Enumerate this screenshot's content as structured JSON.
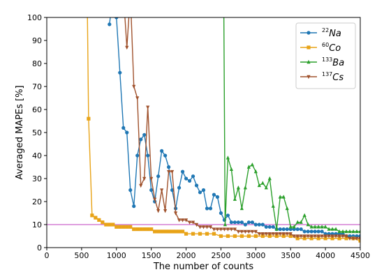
{
  "chart_data": {
    "type": "line",
    "title": "",
    "xlabel": "The number of counts",
    "ylabel": "Averaged MAPEs [%]",
    "xlim": [
      0,
      4500
    ],
    "ylim": [
      0,
      100
    ],
    "x_ticks": [
      0,
      500,
      1000,
      1500,
      2000,
      2500,
      3000,
      3500,
      4000,
      4500
    ],
    "y_ticks": [
      0,
      10,
      20,
      30,
      40,
      50,
      60,
      70,
      80,
      90,
      100
    ],
    "grid": false,
    "legend_position": "top-right",
    "reference_line": {
      "y": 10,
      "color": "#cc66cc"
    },
    "series": [
      {
        "name_sup": "22",
        "name_main": "Na",
        "color": "#1f77b4",
        "marker": "circle",
        "x": [
          900,
          950,
          1000,
          1050,
          1100,
          1150,
          1200,
          1250,
          1300,
          1350,
          1400,
          1450,
          1500,
          1550,
          1600,
          1650,
          1700,
          1750,
          1800,
          1850,
          1900,
          1950,
          2000,
          2050,
          2100,
          2150,
          2200,
          2250,
          2300,
          2350,
          2400,
          2450,
          2500,
          2550,
          2600,
          2650,
          2700,
          2750,
          2800,
          2850,
          2900,
          2950,
          3000,
          3050,
          3100,
          3150,
          3200,
          3250,
          3300,
          3350,
          3400,
          3450,
          3500,
          3550,
          3600,
          3650,
          3700,
          3750,
          3800,
          3850,
          3900,
          3950,
          4000,
          4050,
          4100,
          4150,
          4200,
          4250,
          4300,
          4350,
          4400,
          4450,
          4500
        ],
        "y": [
          97,
          110,
          100,
          76,
          52,
          50,
          25,
          18,
          40,
          47,
          49,
          40,
          25,
          20,
          31,
          42,
          40,
          35,
          25,
          17,
          26,
          33,
          30,
          29,
          31,
          27,
          24,
          25,
          17,
          17,
          23,
          22,
          15,
          12,
          14,
          11,
          11,
          11,
          11,
          10,
          11,
          11,
          10,
          10,
          10,
          9,
          9,
          9,
          8,
          8,
          8,
          8,
          8,
          8,
          8,
          8,
          7,
          7,
          7,
          7,
          7,
          7,
          6,
          6,
          6,
          6,
          6,
          6,
          5,
          5,
          5,
          5,
          5
        ]
      },
      {
        "name_sup": "60",
        "name_main": "Co",
        "color": "#e8a317",
        "marker": "square",
        "x": [
          580,
          600,
          650,
          700,
          750,
          800,
          850,
          900,
          950,
          1000,
          1050,
          1100,
          1150,
          1200,
          1250,
          1300,
          1350,
          1400,
          1450,
          1500,
          1550,
          1600,
          1650,
          1700,
          1750,
          1800,
          1850,
          1900,
          1950,
          2000,
          2100,
          2200,
          2300,
          2400,
          2500,
          2600,
          2700,
          2800,
          2900,
          3000,
          3100,
          3200,
          3300,
          3400,
          3500,
          3600,
          3700,
          3800,
          3900,
          4000,
          4100,
          4200,
          4300,
          4400,
          4500
        ],
        "y": [
          110,
          56,
          14,
          13,
          12,
          11,
          10,
          10,
          10,
          9,
          9,
          9,
          9,
          9,
          8,
          8,
          8,
          8,
          8,
          8,
          7,
          7,
          7,
          7,
          7,
          7,
          7,
          7,
          7,
          6,
          6,
          6,
          6,
          6,
          5,
          5,
          5,
          5,
          5,
          5,
          5,
          5,
          5,
          5,
          5,
          4,
          4,
          4,
          4,
          4,
          4,
          4,
          4,
          4,
          3
        ]
      },
      {
        "name_sup": "133",
        "name_main": "Ba",
        "color": "#2ca02c",
        "marker": "triangle-up",
        "x": [
          2540,
          2560,
          2600,
          2650,
          2700,
          2750,
          2800,
          2850,
          2900,
          2950,
          3000,
          3050,
          3100,
          3150,
          3200,
          3250,
          3300,
          3350,
          3400,
          3450,
          3500,
          3550,
          3600,
          3650,
          3700,
          3750,
          3800,
          3850,
          3900,
          3950,
          4000,
          4050,
          4100,
          4150,
          4200,
          4250,
          4300,
          4350,
          4400,
          4450,
          4500
        ],
        "y": [
          110,
          10,
          39,
          34,
          21,
          26,
          17,
          26,
          35,
          36,
          33,
          27,
          28,
          26,
          30,
          18,
          8,
          22,
          22,
          17,
          9,
          9,
          11,
          11,
          14,
          10,
          9,
          9,
          9,
          9,
          9,
          8,
          8,
          8,
          7,
          7,
          7,
          7,
          7,
          7,
          7
        ]
      },
      {
        "name_sup": "137",
        "name_main": "Cs",
        "color": "#a0522d",
        "marker": "triangle-down",
        "x": [
          1100,
          1150,
          1200,
          1250,
          1300,
          1350,
          1400,
          1450,
          1500,
          1550,
          1600,
          1650,
          1700,
          1750,
          1800,
          1850,
          1900,
          1950,
          2000,
          2050,
          2100,
          2150,
          2200,
          2250,
          2300,
          2350,
          2400,
          2450,
          2500,
          2550,
          2600,
          2650,
          2700,
          2750,
          2800,
          2850,
          2900,
          2950,
          3000,
          3050,
          3100,
          3150,
          3200,
          3250,
          3300,
          3350,
          3400,
          3450,
          3500,
          3550,
          3600,
          3650,
          3700,
          3750,
          3800,
          3850,
          3900,
          3950,
          4000,
          4050,
          4100,
          4150,
          4200,
          4250,
          4300,
          4350,
          4400,
          4450,
          4500
        ],
        "y": [
          110,
          87,
          110,
          70,
          65,
          27,
          30,
          61,
          30,
          21,
          16,
          25,
          16,
          33,
          33,
          15,
          12,
          12,
          12,
          11,
          11,
          10,
          9,
          9,
          9,
          9,
          8,
          8,
          8,
          8,
          8,
          8,
          8,
          7,
          7,
          7,
          7,
          7,
          7,
          6,
          6,
          6,
          6,
          6,
          6,
          6,
          6,
          6,
          6,
          5,
          5,
          5,
          5,
          5,
          5,
          5,
          5,
          5,
          5,
          5,
          5,
          5,
          5,
          5,
          5,
          4,
          4,
          4,
          4
        ]
      }
    ]
  }
}
